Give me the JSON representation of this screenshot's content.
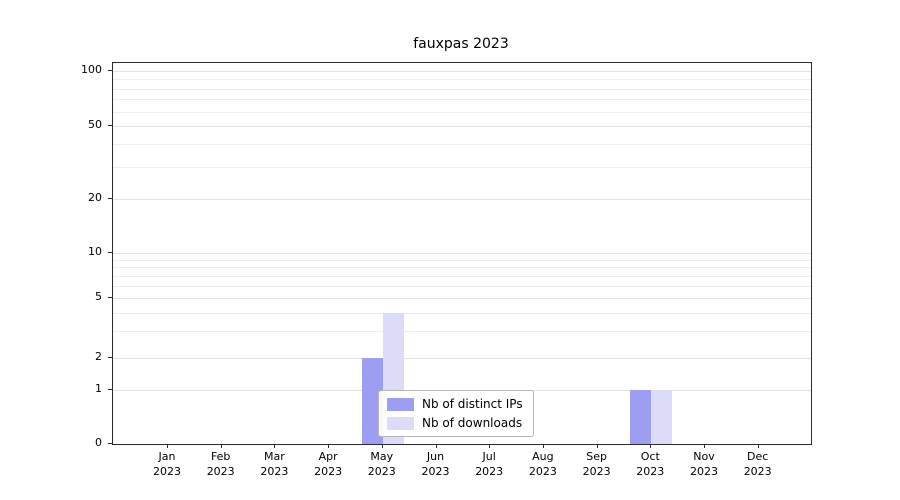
{
  "title": "fauxpas 2023",
  "chart_data": {
    "type": "bar",
    "title": "fauxpas 2023",
    "categories": [
      "Jan 2023",
      "Feb 2023",
      "Mar 2023",
      "Apr 2023",
      "May 2023",
      "Jun 2023",
      "Jul 2023",
      "Aug 2023",
      "Sep 2023",
      "Oct 2023",
      "Nov 2023",
      "Dec 2023"
    ],
    "series": [
      {
        "name": "Nb of distinct IPs",
        "color": "#9d9df1",
        "values": [
          0,
          0,
          0,
          0,
          2,
          0,
          0,
          0,
          0,
          1,
          0,
          0
        ]
      },
      {
        "name": "Nb of downloads",
        "color": "#dcdcf9",
        "values": [
          0,
          0,
          0,
          0,
          4,
          0,
          0,
          0,
          0,
          1,
          0,
          0
        ]
      }
    ],
    "yticks": [
      0,
      1,
      2,
      5,
      10,
      20,
      50,
      100
    ],
    "yscale": "symlog",
    "ylim": [
      0,
      110
    ],
    "xlabel": "",
    "ylabel": "",
    "grid": "horizontal log minor gridlines",
    "legend_position": "lower center"
  }
}
